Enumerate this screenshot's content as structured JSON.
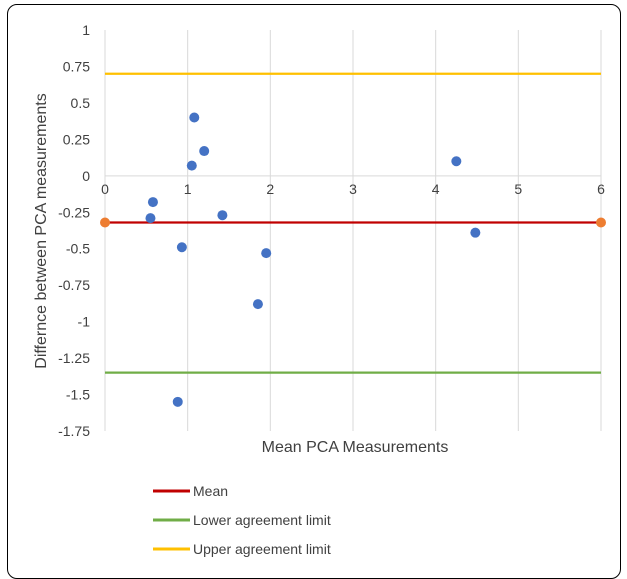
{
  "chart_data": {
    "type": "scatter",
    "title": "",
    "xlabel": "Mean PCA Measurements",
    "ylabel": "Differnce between PCA measurements",
    "xlim": [
      0,
      6
    ],
    "ylim": [
      -1.75,
      1
    ],
    "x_ticks": [
      "0",
      "1",
      "2",
      "3",
      "4",
      "5",
      "6"
    ],
    "y_ticks": [
      "1",
      "0.75",
      "0.5",
      "0.25",
      "0",
      "-0.25",
      "-0.5",
      "-0.75",
      "-1",
      "-1.25",
      "-1.5",
      "-1.75"
    ],
    "grid": "vertical",
    "legend_position": "bottom",
    "points": [
      {
        "x": 0.55,
        "y": -0.29
      },
      {
        "x": 0.58,
        "y": -0.18
      },
      {
        "x": 0.93,
        "y": -0.49
      },
      {
        "x": 1.05,
        "y": 0.07
      },
      {
        "x": 1.08,
        "y": 0.4
      },
      {
        "x": 1.2,
        "y": 0.17
      },
      {
        "x": 1.42,
        "y": -0.27
      },
      {
        "x": 1.85,
        "y": -0.88
      },
      {
        "x": 1.95,
        "y": -0.53
      },
      {
        "x": 0.88,
        "y": -1.55
      },
      {
        "x": 4.25,
        "y": 0.1
      },
      {
        "x": 4.48,
        "y": -0.39
      }
    ],
    "lines": [
      {
        "name": "Mean",
        "y": -0.32,
        "color": "#c00000",
        "endpoint_color": "#ed7d31"
      },
      {
        "name": "Lower agreement limit",
        "y": -1.35,
        "color": "#70ad47"
      },
      {
        "name": "Upper agreement limit",
        "y": 0.7,
        "color": "#ffc000"
      }
    ],
    "point_color": "#4472c4"
  }
}
